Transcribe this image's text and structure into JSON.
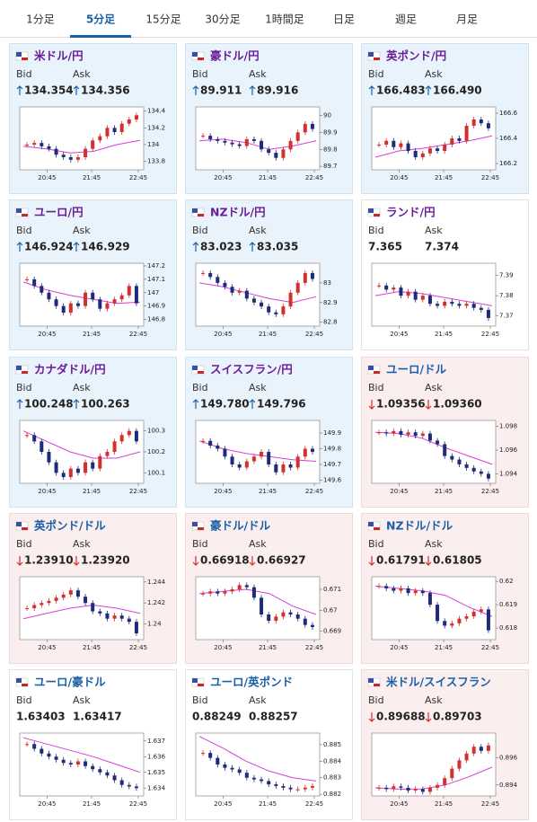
{
  "tabs": {
    "items": [
      "1分足",
      "5分足",
      "15分足",
      "30分足",
      "1時間足",
      "日足",
      "週足",
      "月足"
    ],
    "active": 1
  },
  "bid_label": "Bid",
  "ask_label": "Ask",
  "time_labels": [
    "20:45",
    "21:45",
    "22:45"
  ],
  "panels": [
    {
      "title": "米ドル/円",
      "title_color": "#6a1b9a",
      "tone": "up",
      "bid": {
        "dir": "up",
        "value": "134.354"
      },
      "ask": {
        "dir": "up",
        "value": "134.356"
      },
      "chart": {
        "ylim": [
          133.7,
          134.45
        ],
        "yticks": [
          133.8,
          134,
          134.2,
          134.4
        ],
        "close": [
          134.0,
          134.02,
          133.98,
          133.95,
          133.88,
          133.85,
          133.82,
          133.85,
          133.95,
          134.05,
          134.1,
          134.2,
          134.15,
          134.25,
          134.3,
          134.35
        ],
        "ma": [
          133.98,
          133.95,
          133.9,
          133.92,
          134.0,
          134.05
        ]
      }
    },
    {
      "title": "豪ドル/円",
      "title_color": "#6a1b9a",
      "tone": "up",
      "bid": {
        "dir": "up",
        "value": "89.911"
      },
      "ask": {
        "dir": "up",
        "value": "89.916"
      },
      "chart": {
        "ylim": [
          89.68,
          90.05
        ],
        "yticks": [
          89.7,
          89.8,
          89.9,
          90
        ],
        "close": [
          89.88,
          89.86,
          89.85,
          89.84,
          89.83,
          89.82,
          89.86,
          89.85,
          89.8,
          89.78,
          89.75,
          89.8,
          89.85,
          89.9,
          89.95,
          89.92
        ],
        "ma": [
          89.85,
          89.86,
          89.84,
          89.8,
          89.82,
          89.85
        ]
      }
    },
    {
      "title": "英ポンド/円",
      "title_color": "#6a1b9a",
      "tone": "up",
      "bid": {
        "dir": "up",
        "value": "166.483"
      },
      "ask": {
        "dir": "up",
        "value": "166.490"
      },
      "chart": {
        "ylim": [
          166.15,
          166.65
        ],
        "yticks": [
          166.2,
          166.4,
          166.6
        ],
        "close": [
          166.35,
          166.38,
          166.33,
          166.36,
          166.3,
          166.25,
          166.28,
          166.32,
          166.3,
          166.35,
          166.4,
          166.38,
          166.5,
          166.55,
          166.52,
          166.48
        ],
        "ma": [
          166.25,
          166.3,
          166.32,
          166.35,
          166.38,
          166.42
        ]
      }
    },
    {
      "title": "ユーロ/円",
      "title_color": "#6a1b9a",
      "tone": "up",
      "bid": {
        "dir": "up",
        "value": "146.924"
      },
      "ask": {
        "dir": "up",
        "value": "146.929"
      },
      "chart": {
        "ylim": [
          146.75,
          147.22
        ],
        "yticks": [
          146.8,
          146.9,
          147,
          147.1,
          147.2
        ],
        "close": [
          147.1,
          147.05,
          147.0,
          146.95,
          146.9,
          146.85,
          146.92,
          146.9,
          147.0,
          146.95,
          146.88,
          146.92,
          146.95,
          146.98,
          147.05,
          146.92
        ],
        "ma": [
          147.08,
          147.02,
          146.98,
          146.95,
          146.92,
          146.93
        ]
      }
    },
    {
      "title": "NZドル/円",
      "title_color": "#6a1b9a",
      "tone": "up",
      "bid": {
        "dir": "up",
        "value": "83.023"
      },
      "ask": {
        "dir": "up",
        "value": "83.035"
      },
      "chart": {
        "ylim": [
          82.78,
          83.1
        ],
        "yticks": [
          82.8,
          82.9,
          83
        ],
        "close": [
          83.05,
          83.03,
          83.0,
          82.98,
          82.95,
          82.96,
          82.92,
          82.9,
          82.88,
          82.85,
          82.84,
          82.88,
          82.95,
          83.0,
          83.05,
          83.02
        ],
        "ma": [
          83.0,
          82.98,
          82.95,
          82.92,
          82.9,
          82.93
        ]
      }
    },
    {
      "title": "ランド/円",
      "title_color": "#6a1b9a",
      "tone": "flat",
      "bid": {
        "dir": null,
        "value": "7.365"
      },
      "ask": {
        "dir": null,
        "value": "7.374"
      },
      "chart": {
        "ylim": [
          7.365,
          7.396
        ],
        "yticks": [
          7.37,
          7.38,
          7.39
        ],
        "close": [
          7.385,
          7.383,
          7.384,
          7.38,
          7.382,
          7.378,
          7.38,
          7.376,
          7.375,
          7.377,
          7.376,
          7.375,
          7.376,
          7.374,
          7.373,
          7.369
        ],
        "ma": [
          7.38,
          7.382,
          7.381,
          7.379,
          7.377,
          7.375
        ]
      }
    },
    {
      "title": "カナダドル/円",
      "title_color": "#6a1b9a",
      "tone": "up",
      "bid": {
        "dir": "up",
        "value": "100.248"
      },
      "ask": {
        "dir": "up",
        "value": "100.263"
      },
      "chart": {
        "ylim": [
          100.05,
          100.35
        ],
        "yticks": [
          100.1,
          100.2,
          100.3
        ],
        "close": [
          100.28,
          100.25,
          100.2,
          100.15,
          100.1,
          100.08,
          100.12,
          100.1,
          100.15,
          100.12,
          100.18,
          100.2,
          100.25,
          100.28,
          100.3,
          100.25
        ],
        "ma": [
          100.3,
          100.25,
          100.2,
          100.17,
          100.17,
          100.2
        ]
      }
    },
    {
      "title": "スイスフラン/円",
      "title_color": "#6a1b9a",
      "tone": "up",
      "bid": {
        "dir": "up",
        "value": "149.780"
      },
      "ask": {
        "dir": "up",
        "value": "149.796"
      },
      "chart": {
        "ylim": [
          149.58,
          149.98
        ],
        "yticks": [
          149.6,
          149.7,
          149.8,
          149.9
        ],
        "close": [
          149.85,
          149.82,
          149.8,
          149.75,
          149.7,
          149.68,
          149.72,
          149.75,
          149.78,
          149.7,
          149.65,
          149.7,
          149.68,
          149.75,
          149.8,
          149.78
        ],
        "ma": [
          149.85,
          149.8,
          149.77,
          149.75,
          149.73,
          149.72
        ]
      }
    },
    {
      "title": "ユーロ/ドル",
      "title_color": "#1a5fa8",
      "tone": "down",
      "bid": {
        "dir": "down",
        "value": "1.09356"
      },
      "ask": {
        "dir": "down",
        "value": "1.09360"
      },
      "chart": {
        "ylim": [
          1.0932,
          1.0985
        ],
        "yticks": [
          1.094,
          1.096,
          1.098
        ],
        "close": [
          1.0975,
          1.0974,
          1.0976,
          1.0973,
          1.0975,
          1.0972,
          1.0974,
          1.0968,
          1.0965,
          1.0955,
          1.0952,
          1.0948,
          1.0945,
          1.0942,
          1.094,
          1.0936
        ],
        "ma": [
          1.0975,
          1.0974,
          1.097,
          1.0962,
          1.0955,
          1.0948
        ]
      }
    },
    {
      "title": "英ポンド/ドル",
      "title_color": "#1a5fa8",
      "tone": "down",
      "bid": {
        "dir": "down",
        "value": "1.23910"
      },
      "ask": {
        "dir": "down",
        "value": "1.23920"
      },
      "chart": {
        "ylim": [
          1.2385,
          1.2445
        ],
        "yticks": [
          1.24,
          1.242,
          1.244
        ],
        "close": [
          1.2415,
          1.2418,
          1.242,
          1.2422,
          1.2425,
          1.2428,
          1.2432,
          1.2426,
          1.242,
          1.2412,
          1.241,
          1.2405,
          1.2408,
          1.2405,
          1.2402,
          1.2391
        ],
        "ma": [
          1.2405,
          1.241,
          1.2415,
          1.2418,
          1.2415,
          1.241
        ]
      }
    },
    {
      "title": "豪ドル/ドル",
      "title_color": "#1a5fa8",
      "tone": "down",
      "bid": {
        "dir": "down",
        "value": "0.66918"
      },
      "ask": {
        "dir": "down",
        "value": "0.66927"
      },
      "chart": {
        "ylim": [
          0.6686,
          0.6716
        ],
        "yticks": [
          0.669,
          0.67,
          0.671
        ],
        "close": [
          0.6708,
          0.6709,
          0.6708,
          0.6709,
          0.671,
          0.6712,
          0.6711,
          0.6706,
          0.6698,
          0.6695,
          0.6697,
          0.6699,
          0.6698,
          0.6696,
          0.6693,
          0.6692
        ],
        "ma": [
          0.6708,
          0.6709,
          0.671,
          0.6708,
          0.6702,
          0.6698
        ]
      }
    },
    {
      "title": "NZドル/ドル",
      "title_color": "#1a5fa8",
      "tone": "down",
      "bid": {
        "dir": "down",
        "value": "0.61791"
      },
      "ask": {
        "dir": "down",
        "value": "0.61805"
      },
      "chart": {
        "ylim": [
          0.6175,
          0.6202
        ],
        "yticks": [
          0.618,
          0.619,
          0.62
        ],
        "close": [
          0.6198,
          0.6197,
          0.6196,
          0.6197,
          0.6195,
          0.6196,
          0.6195,
          0.619,
          0.6183,
          0.6181,
          0.6182,
          0.6184,
          0.6185,
          0.6187,
          0.6188,
          0.6179
        ],
        "ma": [
          0.6198,
          0.6197,
          0.6196,
          0.6194,
          0.6189,
          0.6185
        ]
      }
    },
    {
      "title": "ユーロ/豪ドル",
      "title_color": "#1a5fa8",
      "tone": "flat",
      "bid": {
        "dir": null,
        "value": "1.63403"
      },
      "ask": {
        "dir": null,
        "value": "1.63417"
      },
      "chart": {
        "ylim": [
          1.6335,
          1.6375
        ],
        "yticks": [
          1.634,
          1.635,
          1.636,
          1.637
        ],
        "close": [
          1.6368,
          1.6365,
          1.6362,
          1.636,
          1.6358,
          1.6356,
          1.6355,
          1.6357,
          1.6354,
          1.6352,
          1.635,
          1.6348,
          1.6345,
          1.6342,
          1.6341,
          1.634
        ],
        "ma": [
          1.6372,
          1.6368,
          1.6364,
          1.636,
          1.6355,
          1.635
        ]
      }
    },
    {
      "title": "ユーロ/英ポンド",
      "title_color": "#1a5fa8",
      "tone": "flat",
      "bid": {
        "dir": null,
        "value": "0.88249"
      },
      "ask": {
        "dir": null,
        "value": "0.88257"
      },
      "chart": {
        "ylim": [
          0.8819,
          0.8857
        ],
        "yticks": [
          0.882,
          0.883,
          0.884,
          0.885
        ],
        "close": [
          0.8845,
          0.8842,
          0.8838,
          0.8836,
          0.8835,
          0.8833,
          0.883,
          0.8829,
          0.8828,
          0.8826,
          0.8825,
          0.8824,
          0.8823,
          0.8823,
          0.8824,
          0.8825
        ],
        "ma": [
          0.8855,
          0.8848,
          0.884,
          0.8834,
          0.883,
          0.8828
        ]
      }
    },
    {
      "title": "米ドル/スイスフラン",
      "title_color": "#1a5fa8",
      "tone": "down",
      "bid": {
        "dir": "down",
        "value": "0.89688"
      },
      "ask": {
        "dir": "down",
        "value": "0.89703"
      },
      "chart": {
        "ylim": [
          0.8932,
          0.8978
        ],
        "yticks": [
          0.894,
          0.896
        ],
        "close": [
          0.8938,
          0.8937,
          0.8939,
          0.8938,
          0.8936,
          0.8937,
          0.8935,
          0.8938,
          0.894,
          0.8945,
          0.8952,
          0.8958,
          0.8963,
          0.8968,
          0.8965,
          0.8969
        ],
        "ma": [
          0.8938,
          0.8937,
          0.8937,
          0.894,
          0.8946,
          0.8953
        ]
      }
    }
  ]
}
